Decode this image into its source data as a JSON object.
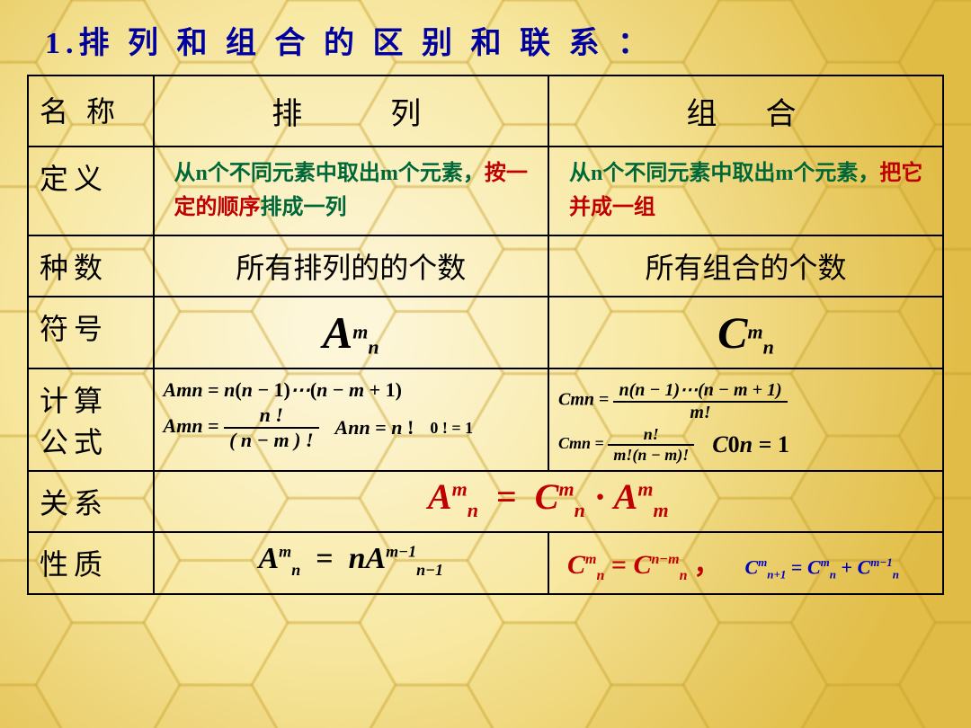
{
  "title": "1.排 列 和 组 合 的 区 别 和 联 系 ：",
  "title_color": "#0000a0",
  "background": {
    "base_color": "#f8e8a0",
    "hex_color": "#f5d76e",
    "hex_size": 80
  },
  "headers": {
    "c1": "名 称",
    "c2": "排　　列",
    "c3": "组　合"
  },
  "rows": {
    "definition": {
      "label": "定义",
      "perm_pre": "从n个不同元素中取出m个元素，",
      "perm_red": "按一定的顺序",
      "perm_post": "排成一列",
      "comb_pre": "从n个不同元素中取出m个元素，",
      "comb_red": "把它并成一组",
      "text_color": "#006838",
      "highlight_color": "#c00000"
    },
    "count": {
      "label": "种数",
      "perm": "所有排列的的个数",
      "comb": "所有组合的个数"
    },
    "symbol": {
      "label": "符号",
      "perm_var": "A",
      "perm_sup": "m",
      "perm_sub": "n",
      "comb_var": "C",
      "comb_sup": "m",
      "comb_sub": "n"
    },
    "formula": {
      "label": "计算公式",
      "perm_line1": "A_n^m = n(n−1)⋯(n−m+1)",
      "perm_frac_num": "n !",
      "perm_frac_den": "( n − m ) !",
      "perm_extra1": "A_n^n = n !",
      "perm_extra2": "0 ! = 1",
      "comb_frac1_num": "n(n − 1)⋯(n − m + 1)",
      "comb_frac1_den": "m!",
      "comb_frac2_num": "n!",
      "comb_frac2_den": "m!(n − m)!",
      "comb_extra": "C_n^0 = 1"
    },
    "relation": {
      "label": "关系",
      "text": "A_n^m = C_n^m · A_m^m",
      "color": "#c00000"
    },
    "property": {
      "label": "性质",
      "perm": "A_n^m = nA_{n−1}^{m−1}",
      "comb1": "C_n^m = C_n^{n−m}",
      "comb2": "C_{n+1}^m = C_n^m + C_n^{m−1}",
      "comb1_color": "#c00000",
      "comb2_color": "#0000c0"
    }
  }
}
